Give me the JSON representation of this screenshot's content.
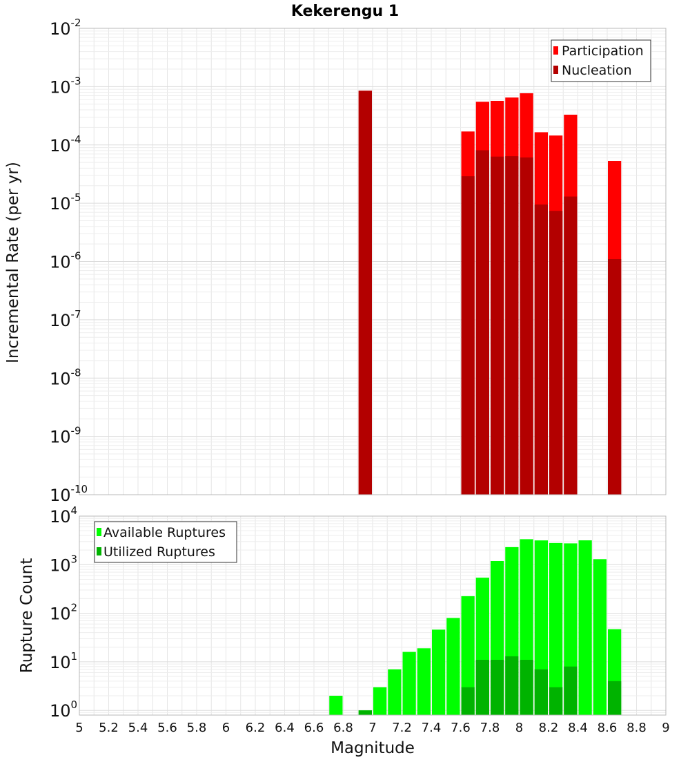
{
  "colors": {
    "participation": "#ff0000",
    "nucleation": "#b30000",
    "available": "#00ff00",
    "utilized": "#00b300",
    "grid": "#e6e6e6",
    "frame": "#b8b8b8"
  },
  "chart_data": [
    {
      "type": "bar",
      "title": "Kekerengu 1",
      "xlabel": "",
      "ylabel": "Incremental Rate (per yr)",
      "yscale": "log",
      "ylim": [
        1e-10,
        0.01
      ],
      "xlim": [
        5,
        9
      ],
      "bin_width": 0.1,
      "legend_position": "top-right",
      "series": [
        {
          "name": "Participation",
          "color": "#ff0000",
          "x": [
            6.95,
            7.65,
            7.75,
            7.85,
            7.95,
            8.05,
            8.15,
            8.25,
            8.35,
            8.65
          ],
          "values": [
            0.00085,
            0.00017,
            0.00055,
            0.00057,
            0.00065,
            0.00077,
            0.000165,
            0.000145,
            0.00033,
            5.3e-05
          ]
        },
        {
          "name": "Nucleation",
          "color": "#b30000",
          "x": [
            6.95,
            7.65,
            7.75,
            7.85,
            7.95,
            8.05,
            8.15,
            8.25,
            8.35,
            8.65
          ],
          "values": [
            0.00085,
            2.9e-05,
            8.1e-05,
            6.3e-05,
            6.4e-05,
            6.1e-05,
            9.5e-06,
            7.4e-06,
            1.3e-05,
            1.1e-06
          ]
        }
      ]
    },
    {
      "type": "bar",
      "title": "",
      "xlabel": "Magnitude",
      "ylabel": "Rupture Count",
      "yscale": "log",
      "ylim": [
        0.8,
        10000
      ],
      "xlim": [
        5,
        9
      ],
      "bin_width": 0.1,
      "legend_position": "top-left",
      "x_ticks": [
        "5",
        "5.2",
        "5.4",
        "5.6",
        "5.8",
        "6",
        "6.2",
        "6.4",
        "6.6",
        "6.8",
        "7",
        "7.2",
        "7.4",
        "7.6",
        "7.8",
        "8",
        "8.2",
        "8.4",
        "8.6",
        "8.8",
        "9"
      ],
      "series": [
        {
          "name": "Available Ruptures",
          "color": "#00ff00",
          "x": [
            6.75,
            6.95,
            7.05,
            7.15,
            7.25,
            7.35,
            7.45,
            7.55,
            7.65,
            7.75,
            7.85,
            7.95,
            8.05,
            8.15,
            8.25,
            8.35,
            8.45,
            8.55,
            8.65
          ],
          "values": [
            2,
            1,
            3,
            7,
            16,
            19,
            46,
            80,
            225,
            540,
            1190,
            2300,
            3350,
            3160,
            2800,
            2750,
            3170,
            1300,
            47
          ]
        },
        {
          "name": "Utilized Ruptures",
          "color": "#00b300",
          "x": [
            6.95,
            7.65,
            7.75,
            7.85,
            7.95,
            8.05,
            8.15,
            8.25,
            8.35,
            8.65
          ],
          "values": [
            1,
            3,
            11,
            11,
            13,
            11,
            7,
            3,
            8,
            4
          ]
        }
      ]
    }
  ]
}
